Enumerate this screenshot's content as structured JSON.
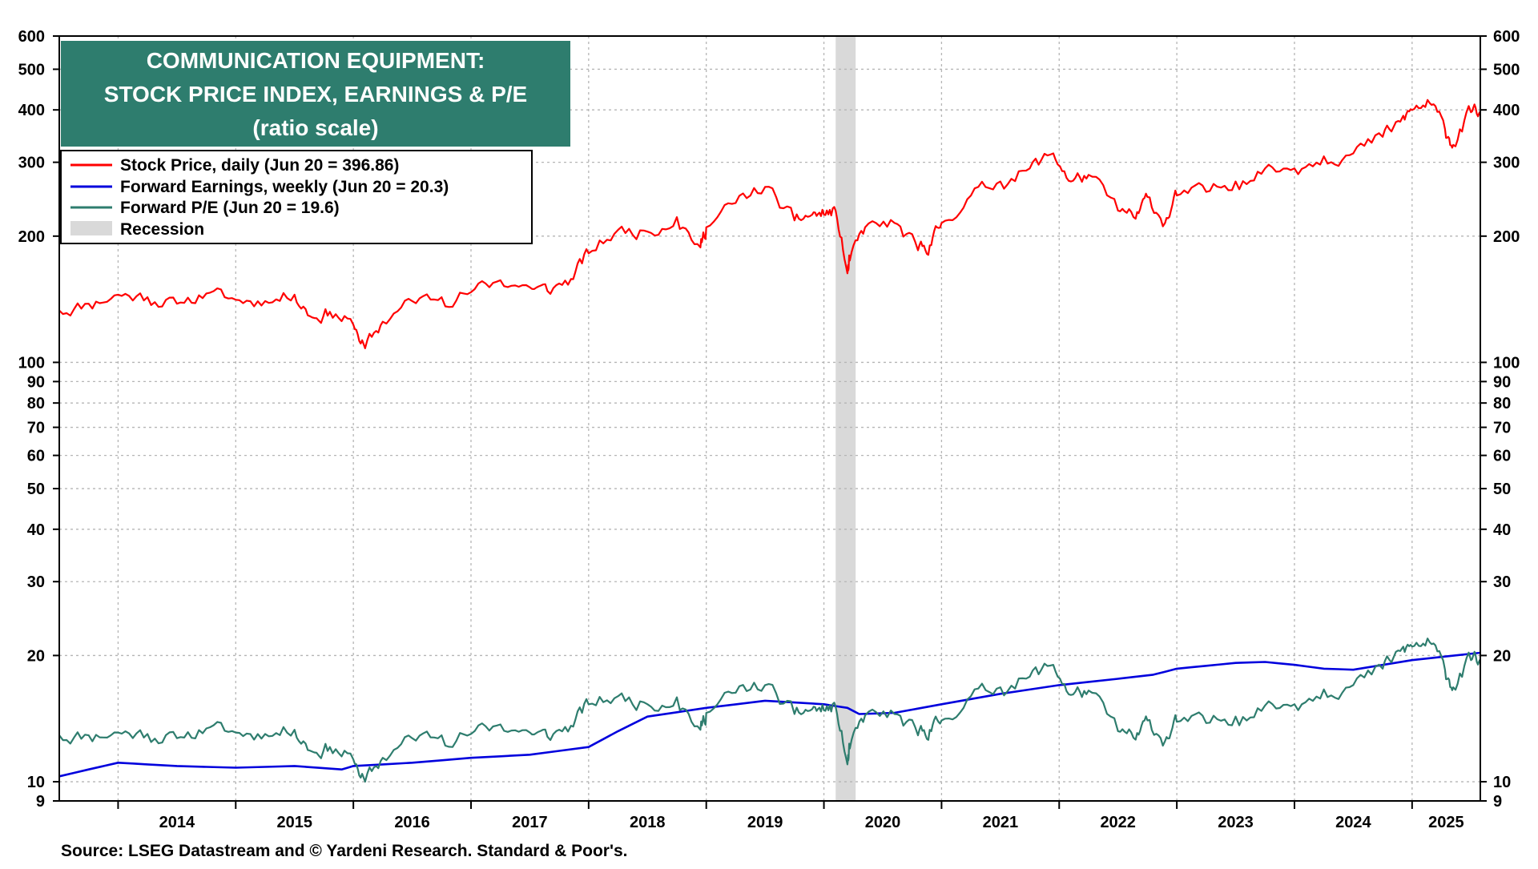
{
  "chart_data": {
    "type": "line",
    "title": [
      "COMMUNICATION EQUIPMENT:",
      "STOCK PRICE INDEX, EARNINGS & P/E",
      "(ratio scale)"
    ],
    "source": "Source: LSEG Datastream and © Yardeni Research. Standard & Poor's.",
    "y_scale": "log",
    "ylim": [
      9,
      600
    ],
    "xlim": [
      2013.5,
      2025.58
    ],
    "y_ticks": [
      9,
      10,
      20,
      30,
      40,
      50,
      60,
      70,
      80,
      90,
      100,
      200,
      300,
      400,
      500,
      600
    ],
    "x_tick_labels": [
      "2014",
      "2015",
      "2016",
      "2017",
      "2018",
      "2019",
      "2020",
      "2021",
      "2022",
      "2023",
      "2024",
      "2025"
    ],
    "grid": true,
    "legend_position": "top-left",
    "colors": {
      "price": "#ff0000",
      "earnings": "#0000dd",
      "pe": "#2e7d6e",
      "recession": "#d9d9d9",
      "title_box": "#2e7d6e"
    },
    "recession": {
      "label": "Recession",
      "start": 2020.1,
      "end": 2020.27
    },
    "series": [
      {
        "name": "Stock Price, daily (Jun 20 = 396.86)",
        "key": "price",
        "x": [
          2013.5,
          2013.75,
          2014.0,
          2014.25,
          2014.5,
          2014.75,
          2015.0,
          2015.25,
          2015.5,
          2015.65,
          2015.8,
          2016.0,
          2016.1,
          2016.25,
          2016.5,
          2016.75,
          2017.0,
          2017.25,
          2017.5,
          2017.65,
          2017.85,
          2018.0,
          2018.25,
          2018.5,
          2018.75,
          2018.95,
          2019.0,
          2019.25,
          2019.5,
          2019.75,
          2019.9,
          2020.0,
          2020.1,
          2020.2,
          2020.22,
          2020.35,
          2020.6,
          2020.8,
          2020.9,
          2021.0,
          2021.25,
          2021.5,
          2021.75,
          2021.95,
          2022.1,
          2022.25,
          2022.5,
          2022.65,
          2022.75,
          2022.9,
          2023.0,
          2023.25,
          2023.5,
          2023.75,
          2024.0,
          2024.25,
          2024.5,
          2024.75,
          2024.9,
          2025.0,
          2025.15,
          2025.28,
          2025.35,
          2025.5,
          2025.58
        ],
        "values": [
          133,
          138,
          145,
          143,
          138,
          146,
          141,
          140,
          145,
          128,
          132,
          123,
          108,
          125,
          140,
          143,
          147,
          157,
          151,
          148,
          158,
          182,
          207,
          205,
          222,
          188,
          210,
          240,
          262,
          218,
          225,
          225,
          230,
          163,
          175,
          210,
          215,
          185,
          190,
          215,
          250,
          270,
          290,
          315,
          270,
          280,
          230,
          220,
          248,
          215,
          250,
          255,
          270,
          290,
          290,
          310,
          315,
          345,
          375,
          400,
          415,
          360,
          330,
          395,
          396.86
        ]
      },
      {
        "name": "Forward Earnings, weekly (Jun 20 = 20.3)",
        "key": "earnings",
        "x": [
          2013.5,
          2013.75,
          2014.0,
          2014.25,
          2014.5,
          2015.0,
          2015.5,
          2015.9,
          2016.0,
          2016.5,
          2017.0,
          2017.5,
          2018.0,
          2018.25,
          2018.5,
          2019.0,
          2019.5,
          2020.0,
          2020.2,
          2020.3,
          2020.6,
          2021.0,
          2021.5,
          2022.0,
          2022.5,
          2022.8,
          2023.0,
          2023.25,
          2023.5,
          2023.75,
          2024.0,
          2024.25,
          2024.5,
          2025.0,
          2025.58
        ],
        "values": [
          10.3,
          10.7,
          11.1,
          11.0,
          10.9,
          10.8,
          10.9,
          10.7,
          10.9,
          11.1,
          11.4,
          11.6,
          12.1,
          13.2,
          14.3,
          15.0,
          15.6,
          15.3,
          15.0,
          14.5,
          14.6,
          15.3,
          16.2,
          17.0,
          17.6,
          18.0,
          18.6,
          18.9,
          19.2,
          19.3,
          19.0,
          18.6,
          18.5,
          19.5,
          20.3
        ]
      },
      {
        "name": "Forward P/E (Jun 20 = 19.6)",
        "key": "pe",
        "x": [
          2013.5,
          2013.75,
          2014.0,
          2014.25,
          2014.5,
          2014.75,
          2015.0,
          2015.25,
          2015.5,
          2015.65,
          2015.8,
          2016.0,
          2016.1,
          2016.25,
          2016.5,
          2016.75,
          2017.0,
          2017.25,
          2017.5,
          2017.65,
          2017.85,
          2018.0,
          2018.25,
          2018.5,
          2018.75,
          2018.95,
          2019.0,
          2019.25,
          2019.5,
          2019.75,
          2019.9,
          2020.0,
          2020.1,
          2020.2,
          2020.22,
          2020.35,
          2020.6,
          2020.8,
          2020.9,
          2021.0,
          2021.25,
          2021.5,
          2021.75,
          2021.95,
          2022.1,
          2022.25,
          2022.5,
          2022.65,
          2022.75,
          2022.9,
          2023.0,
          2023.25,
          2023.5,
          2023.75,
          2024.0,
          2024.25,
          2024.5,
          2024.75,
          2024.9,
          2025.0,
          2025.15,
          2025.28,
          2025.35,
          2025.5,
          2025.58
        ],
        "values": [
          12.9,
          12.9,
          13.1,
          13.0,
          12.7,
          13.4,
          13.1,
          13.0,
          13.3,
          11.8,
          12.1,
          11.3,
          10.0,
          11.4,
          12.7,
          12.9,
          13.0,
          13.7,
          13.1,
          12.8,
          13.6,
          15.3,
          16.0,
          15.3,
          15.9,
          13.3,
          14.6,
          16.3,
          17.0,
          14.5,
          14.9,
          14.8,
          15.1,
          11.0,
          12.0,
          14.4,
          14.5,
          12.9,
          13.3,
          14.0,
          16.0,
          16.8,
          17.8,
          19.0,
          16.1,
          16.5,
          13.2,
          12.6,
          14.0,
          12.5,
          13.9,
          13.8,
          14.3,
          15.2,
          15.3,
          16.6,
          17.0,
          18.6,
          20.5,
          21.0,
          21.5,
          18.5,
          16.8,
          19.5,
          19.6
        ]
      }
    ]
  }
}
